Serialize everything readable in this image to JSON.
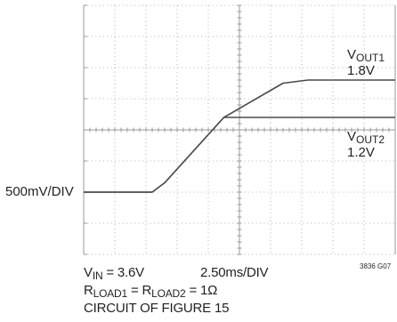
{
  "chart_data": {
    "type": "line",
    "title": "",
    "grid": true,
    "divisions": {
      "x": 10,
      "y": 8
    },
    "y_scale": {
      "label": "500mV/DIV",
      "volts_per_div": 0.5
    },
    "x_scale": {
      "label": "2.50ms/DIV",
      "ms_per_div": 2.5
    },
    "x_range_ms": [
      0,
      25
    ],
    "y_range_div": [
      0,
      8
    ],
    "y_zero_div": 2,
    "series": [
      {
        "name": "V_OUT1",
        "label_main": "V",
        "label_sub": "OUT1",
        "label_value": "1.8V",
        "x_ms": [
          0,
          5.5,
          6.5,
          11.25,
          16.0,
          18.0,
          19.5,
          25.0
        ],
        "y_v": [
          0,
          0,
          0.15,
          1.2,
          1.75,
          1.8,
          1.8,
          1.8
        ]
      },
      {
        "name": "V_OUT2",
        "label_main": "V",
        "label_sub": "OUT2",
        "label_value": "1.2V",
        "x_ms": [
          0,
          5.5,
          6.5,
          11.25,
          12.5,
          13.5,
          25.0
        ],
        "y_v": [
          0,
          0,
          0.15,
          1.2,
          1.2,
          1.2,
          1.2
        ]
      }
    ]
  },
  "conditions": {
    "vin_main": "V",
    "vin_sub": "IN",
    "vin_rest": " = 3.6V",
    "rload_r1": "R",
    "rload_sub1": "LOAD1",
    "rload_mid": " = R",
    "rload_sub2": "LOAD2",
    "rload_rest": " = 1Ω",
    "circuit": "CIRCUIT OF FIGURE 15"
  },
  "ref_code": "3836 G07",
  "colors": {
    "grid": "#9a9a9a",
    "trace": "#4a4a4a",
    "text": "#231f20"
  }
}
